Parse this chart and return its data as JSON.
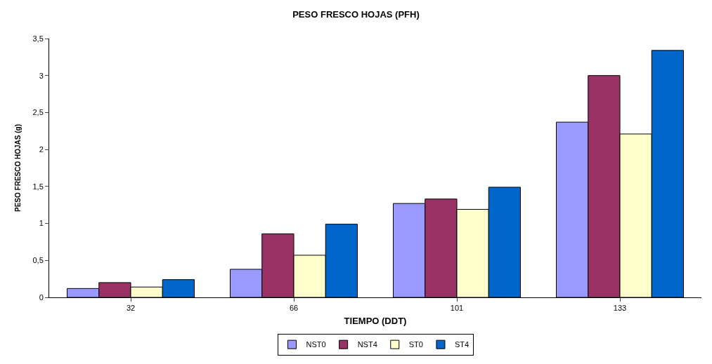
{
  "chart_data": {
    "type": "bar",
    "title": "PESO FRESCO HOJAS (PFH)",
    "xlabel": "TIEMPO (DDT)",
    "ylabel": "PESO FRESCO HOJAS (g)",
    "categories": [
      "32",
      "66",
      "101",
      "133"
    ],
    "series": [
      {
        "name": "NST0",
        "color": "#9999ff",
        "values": [
          0.12,
          0.38,
          1.27,
          2.37
        ]
      },
      {
        "name": "NST4",
        "color": "#993366",
        "values": [
          0.2,
          0.86,
          1.33,
          3.0
        ]
      },
      {
        "name": "ST0",
        "color": "#ffffcc",
        "values": [
          0.14,
          0.57,
          1.19,
          2.21
        ]
      },
      {
        "name": "ST4",
        "color": "#0066cc",
        "values": [
          0.24,
          0.99,
          1.49,
          3.34
        ]
      }
    ],
    "ylim": [
      0,
      3.5
    ],
    "yticks": [
      0,
      {
        "value": 0.5,
        "label": "0,5"
      },
      1,
      {
        "value": 1.5,
        "label": "1,5"
      },
      2,
      {
        "value": 2.5,
        "label": "2,5"
      },
      3,
      {
        "value": 3.5,
        "label": "3,5"
      }
    ],
    "grid": false,
    "legend": "bottom"
  }
}
